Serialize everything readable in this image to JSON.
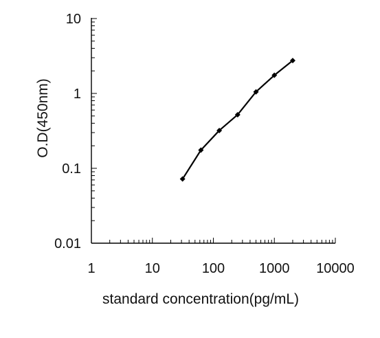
{
  "chart_data": {
    "type": "line",
    "title": "",
    "xlabel": "standard concentration(pg/mL)",
    "ylabel": "O.D(450nm)",
    "x_scale": "log",
    "y_scale": "log",
    "xlim": [
      1,
      10000
    ],
    "ylim": [
      0.01,
      10
    ],
    "x_ticks": [
      "1",
      "10",
      "100",
      "1000",
      "10000"
    ],
    "y_ticks": [
      "0.01",
      "0.1",
      "1",
      "10"
    ],
    "grid": false,
    "series": [
      {
        "x": [
          31.25,
          62.5,
          125,
          250,
          500,
          1000,
          2000
        ],
        "values": [
          0.072,
          0.175,
          0.32,
          0.52,
          1.05,
          1.75,
          2.75
        ],
        "color": "#000000",
        "marker": "diamond"
      }
    ]
  }
}
